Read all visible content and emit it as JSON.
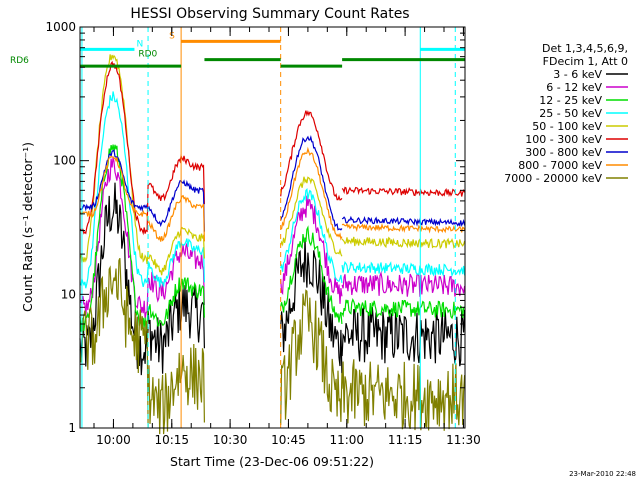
{
  "chart_data": {
    "type": "line",
    "title": "HESSI Observing Summary Count Rates",
    "xlabel": "Start Time (23-Dec-06 09:51:22)",
    "ylabel": "Count Rate (s⁻¹ detector⁻¹)",
    "x_unit": "minutes since 09:51:22",
    "xlim": [
      0,
      99
    ],
    "ylim": [
      1,
      1000
    ],
    "y_scale": "log",
    "grid": false,
    "x_ticks": [
      {
        "t": 8.6,
        "label": "10:00"
      },
      {
        "t": 23.6,
        "label": "10:15"
      },
      {
        "t": 38.6,
        "label": "10:30"
      },
      {
        "t": 53.6,
        "label": "10:45"
      },
      {
        "t": 68.6,
        "label": "11:00"
      },
      {
        "t": 83.6,
        "label": "11:15"
      },
      {
        "t": 98.6,
        "label": "11:30"
      }
    ],
    "y_ticks": [
      {
        "v": 1,
        "label": "1"
      },
      {
        "v": 10,
        "label": "10"
      },
      {
        "v": 100,
        "label": "100"
      },
      {
        "v": 1000,
        "label": "1000"
      }
    ],
    "legend_header": [
      "Det 1,3,4,5,6,9,",
      "FDecim 1, Att 0"
    ],
    "legend_position": "right",
    "data_gap": [
      32.0,
      51.6
    ],
    "segments": [
      [
        0,
        17.5
      ],
      [
        17.5,
        32.0
      ],
      [
        51.6,
        67.4
      ],
      [
        67.4,
        99
      ]
    ],
    "series": [
      {
        "name": "3 - 6 keV",
        "color": "#000000",
        "pre": 4,
        "peak": 40,
        "mid": 6,
        "post": 5,
        "noise": 0.5
      },
      {
        "name": "6 - 12 keV",
        "color": "#cc00cc",
        "pre": 8,
        "peak": 85,
        "mid": 15,
        "post": 12,
        "noise": 0.2
      },
      {
        "name": "12 - 25 keV",
        "color": "#00dd00",
        "pre": 6,
        "peak": 120,
        "mid": 9,
        "post": 8,
        "noise": 0.15
      },
      {
        "name": "25 - 50 keV",
        "color": "#00ffff",
        "pre": 12,
        "peak": 290,
        "mid": 18,
        "post": 16,
        "noise": 0.1
      },
      {
        "name": "50 - 100 keV",
        "color": "#cccc00",
        "pre": 18,
        "peak": 600,
        "mid": 22,
        "post": 25,
        "noise": 0.08
      },
      {
        "name": "100 - 300 keV",
        "color": "#dd0000",
        "pre": 30,
        "peak": 500,
        "mid": 75,
        "post": 60,
        "noise": 0.06
      },
      {
        "name": "300 - 800 keV",
        "color": "#0000cc",
        "pre": 45,
        "peak": 72,
        "mid": 50,
        "post": 36,
        "noise": 0.05
      },
      {
        "name": "800 - 7000 keV",
        "color": "#ff8c00",
        "pre": 40,
        "peak": 70,
        "mid": 38,
        "post": 32,
        "noise": 0.05
      },
      {
        "name": "7000 - 20000 keV",
        "color": "#808000",
        "pre": 4.5,
        "peak": 9,
        "mid": 2,
        "post": 1.8,
        "noise": 0.6
      }
    ],
    "flags": [
      {
        "label": "N",
        "color": "#00ffff",
        "y": 680,
        "intervals": [
          [
            0,
            14
          ],
          [
            87.5,
            99
          ]
        ]
      },
      {
        "label": "RD0",
        "color": "#008800",
        "y": 570,
        "intervals": [
          [
            32,
            51.6
          ],
          [
            67.4,
            99
          ]
        ]
      },
      {
        "label": "RD6",
        "color": "#008800",
        "y": 510,
        "intervals": [
          [
            0,
            26
          ],
          [
            51.6,
            67.4
          ]
        ]
      },
      {
        "label": "S",
        "color": "#ff8c00",
        "y": 780,
        "intervals": [
          [
            26,
            51.6
          ]
        ]
      }
    ],
    "vertical_markers": [
      {
        "t": 0.5,
        "color": "#00ffff",
        "style": "solid"
      },
      {
        "t": 17.5,
        "color": "#00ffff",
        "style": "dashed"
      },
      {
        "t": 26.0,
        "color": "#ff8c00",
        "style": "solid"
      },
      {
        "t": 51.6,
        "color": "#ff8c00",
        "style": "dashed"
      },
      {
        "t": 87.5,
        "color": "#00ffff",
        "style": "solid"
      },
      {
        "t": 96.5,
        "color": "#00ffff",
        "style": "dashed"
      }
    ]
  },
  "footer": {
    "timestamp": "23-Mar-2010 22:48"
  }
}
